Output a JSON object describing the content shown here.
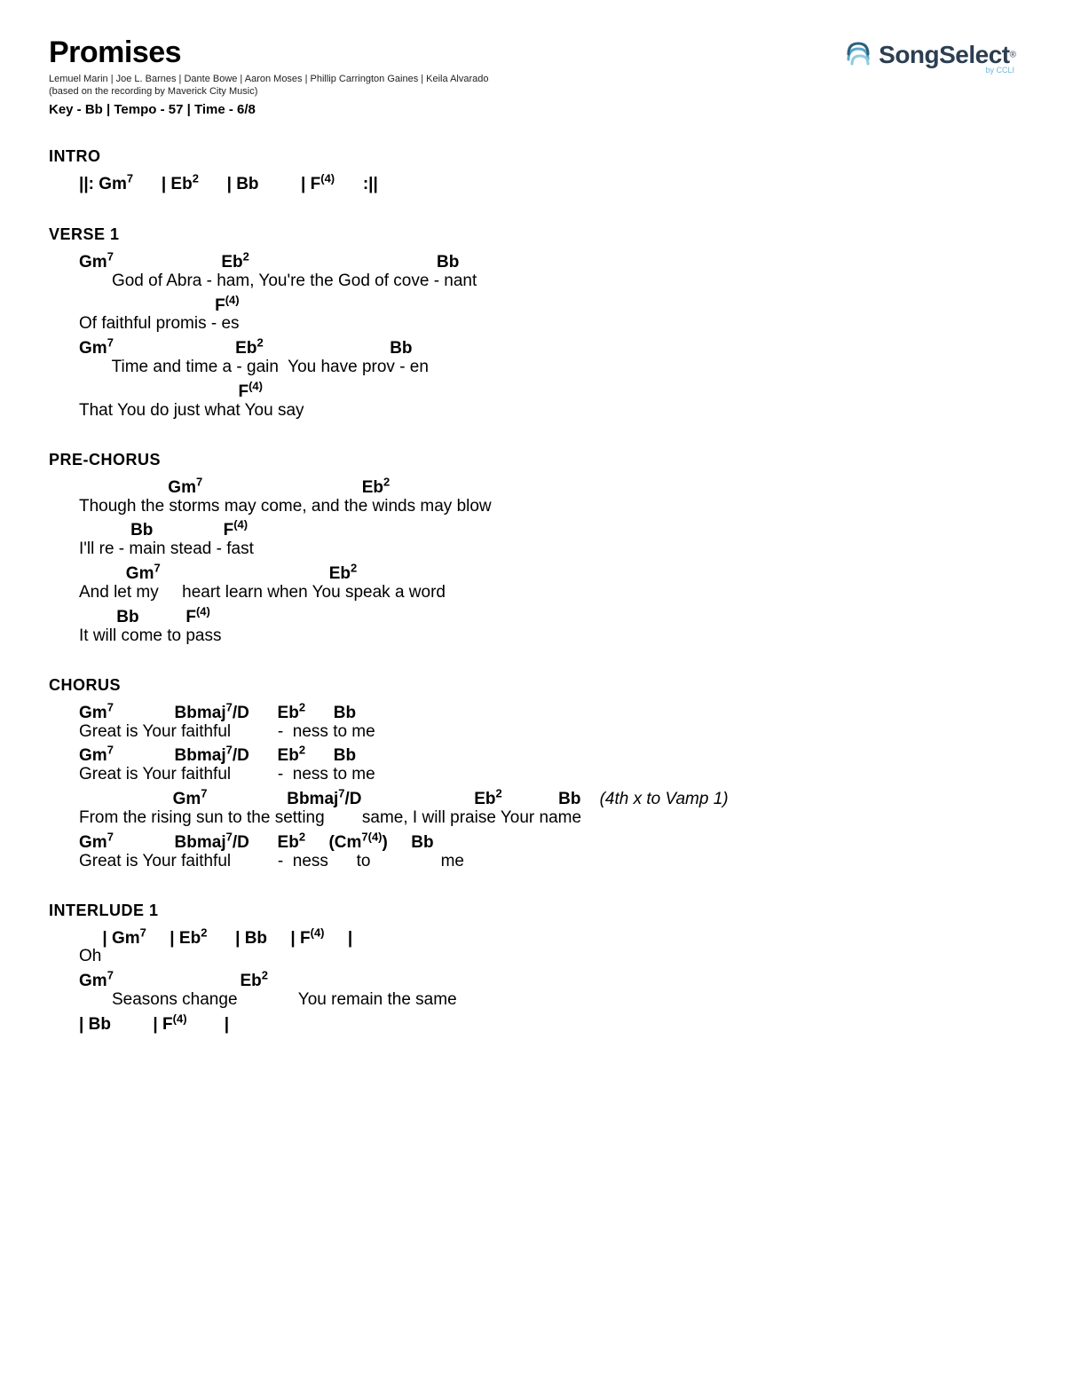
{
  "header": {
    "title": "Promises",
    "authors": "Lemuel Marin | Joe L. Barnes | Dante Bowe | Aaron Moses | Phillip Carrington Gaines | Keila Alvarado",
    "based": "(based on the recording by Maverick City Music)",
    "meta": "Key - Bb | Tempo - 57 | Time - 6/8"
  },
  "logo": {
    "brand": "SongSelect",
    "sub": "by CCLI"
  },
  "sections": {
    "intro": {
      "label": "INTRO",
      "line": "||: Gm⁷      | Eb²      | Bb         | F⁽⁴⁾      :||"
    },
    "verse1": {
      "label": "VERSE 1",
      "l1c": "Gm⁷                       Eb²                                        Bb",
      "l1t": "       God of Abra - ham, You're the God of cove - nant",
      "l2c": "                             F⁽⁴⁾",
      "l2t": "Of faithful promis - es",
      "l3c": "Gm⁷                          Eb²                           Bb",
      "l3t": "       Time and time a - gain  You have prov - en",
      "l4c": "                                  F⁽⁴⁾",
      "l4t": "That You do just what You say"
    },
    "prechorus": {
      "label": "PRE-CHORUS",
      "l1c": "                   Gm⁷                                  Eb²",
      "l1t": "Though the storms may come, and the winds may blow",
      "l2c": "           Bb               F⁽⁴⁾",
      "l2t": "I'll re - main stead - fast",
      "l3c": "          Gm⁷                                    Eb²",
      "l3t": "And let my     heart learn when You speak a word",
      "l4c": "        Bb          F⁽⁴⁾",
      "l4t": "It will come to pass"
    },
    "chorus": {
      "label": "CHORUS",
      "l1c": "Gm⁷             Bbmaj⁷/D      Eb²      Bb",
      "l1t": "Great is Your faithful          -  ness to me",
      "l2c": "Gm⁷             Bbmaj⁷/D      Eb²      Bb",
      "l2t": "Great is Your faithful          -  ness to me",
      "l3c": "                    Gm⁷                 Bbmaj⁷/D                        Eb²            Bb",
      "l3n": "(4th x to Vamp 1)",
      "l3t": "From the rising sun to the setting        same, I will praise Your name",
      "l4c": "Gm⁷             Bbmaj⁷/D      Eb²     (Cm⁷⁽⁴⁾)     Bb",
      "l4t": "Great is Your faithful          -  ness      to               me"
    },
    "interlude1": {
      "label": "INTERLUDE 1",
      "l1c": "     | Gm⁷     | Eb²      | Bb     | F⁽⁴⁾     |",
      "l1t": "Oh",
      "l2c": "Gm⁷                           Eb²",
      "l2t": "       Seasons change             You remain the same",
      "l3c": "| Bb         | F⁽⁴⁾        |"
    }
  }
}
